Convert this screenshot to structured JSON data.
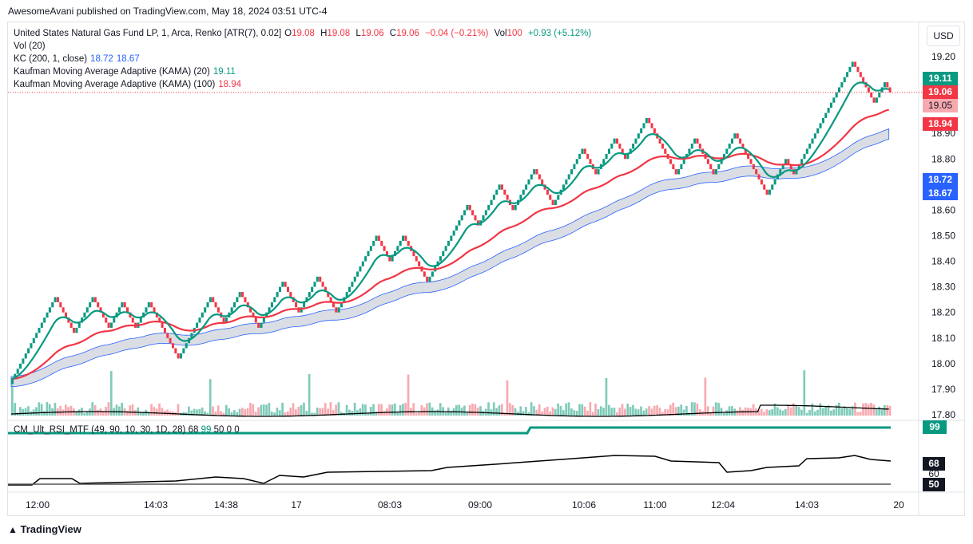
{
  "published_line": "AwesomeAvani published on TradingView.com, May 18, 2024 03:51 UTC-4",
  "legend": {
    "symbol": "United States Natural Gas Fund LP, 1, Arca, Renko [ATR(7), 0.02]",
    "o_label": "O",
    "o_value": "19.08",
    "h_label": "H",
    "h_value": "19.08",
    "l_label": "L",
    "l_value": "19.06",
    "c_label": "C",
    "c_value": "19.06",
    "change": "−0.04 (−0.21%)",
    "vol_label": "Vol",
    "vol_value": "100",
    "vol_change": "+0.93 (+5.12%)",
    "vol_indicator": "Vol (20)",
    "kc_label": "KC (200, 1, close)",
    "kc_upper": "18.72",
    "kc_lower": "18.67",
    "kama20_label": "Kaufman Moving Average Adaptive (KAMA) (20)",
    "kama20_value": "19.11",
    "kama100_label": "Kaufman Moving Average Adaptive (KAMA) (100)",
    "kama100_value": "18.94"
  },
  "currency": "USD",
  "price_tags": {
    "kama20": "19.11",
    "last": "19.06",
    "low": "19.05",
    "kama100": "18.94",
    "kc_upper": "18.72",
    "kc_lower": "18.67"
  },
  "rsi": {
    "label": "CM_Ult_RSI_MTF (49, 90, 10, 30, 1D, 28)",
    "v1": "68",
    "v2": "99",
    "v3": "50",
    "v4": "0",
    "v5": "0",
    "tag_top": "99",
    "tag_mid": "68",
    "tag_60": "60",
    "tag_low": "50"
  },
  "footer": "TradingView",
  "colors": {
    "up": "#089981",
    "down": "#f23645",
    "kama20": "#089981",
    "kama100": "#f23645",
    "kc": "#2962ff",
    "kc_fill": "#d1d4dc"
  },
  "chart_data": {
    "type": "renko",
    "y_ticks": [
      19.2,
      19.1,
      19.0,
      18.9,
      18.8,
      18.7,
      18.6,
      18.5,
      18.4,
      18.3,
      18.2,
      18.1,
      18.0,
      17.9,
      17.8
    ],
    "y_tick_labels": [
      "19.20",
      "19.10",
      "19.00",
      "18.90",
      "18.80",
      "18.70",
      "18.60",
      "18.50",
      "18.40",
      "18.30",
      "18.20",
      "18.10",
      "18.00",
      "17.90",
      "17.80"
    ],
    "ylim": [
      17.79,
      19.24
    ],
    "x_tick_labels": [
      "12:00",
      "14:03",
      "14:38",
      "17",
      "08:03",
      "09:00",
      "10:06",
      "11:00",
      "12:04",
      "14:03",
      "20"
    ],
    "renko_path": [
      17.92,
      18.26,
      18.12,
      18.26,
      18.14,
      18.24,
      18.14,
      18.24,
      18.02,
      18.26,
      18.16,
      18.28,
      18.14,
      18.32,
      18.2,
      18.34,
      18.2,
      18.5,
      18.4,
      18.5,
      18.32,
      18.62,
      18.54,
      18.7,
      18.6,
      18.76,
      18.62,
      18.84,
      18.74,
      18.88,
      18.8,
      18.96,
      18.74,
      18.88,
      18.74,
      18.9,
      18.66,
      18.8,
      18.74,
      19.18,
      19.02,
      19.1,
      19.06
    ],
    "kama20_last": 19.11,
    "kama100_last": 18.94,
    "kc_upper_last": 18.72,
    "kc_lower_last": 18.67,
    "rsi_ticks": [
      "99",
      "68",
      "60",
      "50"
    ]
  }
}
